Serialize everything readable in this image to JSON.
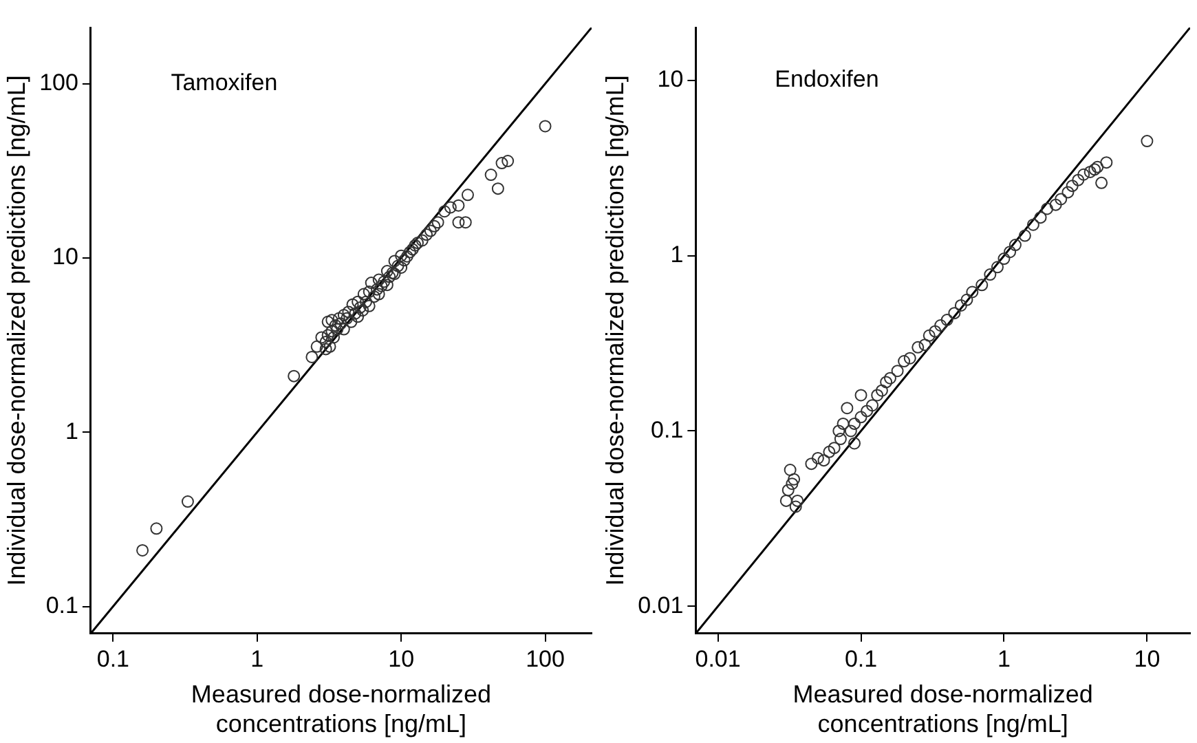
{
  "chart_data": [
    {
      "type": "scatter",
      "title": "Tamoxifen",
      "xlabel": "Measured dose-normalized concentrations [ng/mL]",
      "ylabel": "Individual dose-normalized predictions [ng/mL]",
      "log": "xy",
      "grid": false,
      "legend": false,
      "xlim": [
        0.07,
        210
      ],
      "ylim": [
        0.07,
        210
      ],
      "xticks": [
        0.1,
        1,
        10,
        100
      ],
      "yticks": [
        0.1,
        1,
        10,
        100
      ],
      "series": [
        {
          "marker": "circle",
          "color": "#333333",
          "x": [
            0.16,
            0.2,
            0.33,
            1.8,
            2.4,
            2.6,
            2.8,
            3.0,
            3.0,
            3.1,
            3.1,
            3.2,
            3.3,
            3.3,
            3.4,
            3.5,
            3.6,
            3.7,
            3.8,
            4.0,
            4.0,
            4.2,
            4.3,
            4.5,
            4.6,
            4.8,
            5.0,
            5.0,
            5.2,
            5.4,
            5.5,
            5.7,
            6.0,
            6.0,
            6.2,
            6.5,
            6.8,
            7.0,
            7.0,
            7.3,
            7.6,
            8.0,
            8.0,
            8.3,
            8.7,
            9.0,
            9.0,
            9.5,
            10,
            10,
            10.5,
            11,
            11.5,
            12,
            12.5,
            13,
            14,
            15,
            16,
            17,
            18,
            20,
            22,
            25,
            25,
            28,
            29,
            42,
            47,
            50,
            55,
            100
          ],
          "values": [
            0.21,
            0.28,
            0.4,
            2.1,
            2.7,
            3.1,
            3.5,
            3.0,
            3.3,
            3.6,
            4.3,
            3.1,
            3.8,
            4.4,
            3.5,
            4.1,
            3.9,
            4.5,
            4.2,
            3.9,
            4.7,
            4.5,
            4.9,
            4.3,
            5.4,
            4.8,
            4.6,
            5.6,
            5.2,
            5.0,
            6.2,
            5.6,
            5.3,
            6.4,
            7.2,
            6.0,
            6.6,
            6.2,
            7.5,
            6.9,
            7.3,
            7.0,
            8.4,
            7.8,
            8.2,
            8.1,
            9.6,
            9.0,
            8.8,
            10.3,
            9.7,
            10.2,
            10.8,
            11.2,
            11.8,
            12.2,
            12.6,
            13.6,
            14.3,
            15.2,
            16.0,
            18.5,
            19.5,
            20,
            16,
            16,
            23,
            30,
            25,
            35,
            36,
            57
          ]
        },
        {
          "type": "line",
          "marker": "none",
          "color": "#000000",
          "x": [
            0.07,
            210
          ],
          "values": [
            0.07,
            210
          ]
        }
      ]
    },
    {
      "type": "scatter",
      "title": "Endoxifen",
      "xlabel": "Measured dose-normalized concentrations [ng/mL]",
      "ylabel": "Individual dose-normalized predictions [ng/mL]",
      "log": "xy",
      "grid": false,
      "legend": false,
      "xlim": [
        0.007,
        20
      ],
      "ylim": [
        0.007,
        20
      ],
      "xticks": [
        0.01,
        0.1,
        1,
        10
      ],
      "yticks": [
        0.01,
        0.1,
        1,
        10
      ],
      "series": [
        {
          "marker": "circle",
          "color": "#333333",
          "x": [
            0.03,
            0.031,
            0.032,
            0.033,
            0.034,
            0.035,
            0.036,
            0.045,
            0.05,
            0.055,
            0.06,
            0.065,
            0.07,
            0.072,
            0.075,
            0.08,
            0.085,
            0.09,
            0.09,
            0.1,
            0.1,
            0.11,
            0.12,
            0.13,
            0.14,
            0.15,
            0.16,
            0.18,
            0.2,
            0.22,
            0.25,
            0.28,
            0.3,
            0.33,
            0.36,
            0.4,
            0.45,
            0.5,
            0.55,
            0.6,
            0.7,
            0.8,
            0.9,
            1.0,
            1.1,
            1.2,
            1.4,
            1.6,
            1.8,
            2.0,
            2.3,
            2.5,
            2.8,
            3.0,
            3.3,
            3.6,
            4.0,
            4.3,
            4.5,
            4.8,
            5.2,
            10
          ],
          "values": [
            0.04,
            0.046,
            0.06,
            0.05,
            0.053,
            0.037,
            0.04,
            0.065,
            0.07,
            0.068,
            0.076,
            0.08,
            0.1,
            0.09,
            0.11,
            0.135,
            0.1,
            0.085,
            0.11,
            0.12,
            0.16,
            0.13,
            0.14,
            0.16,
            0.17,
            0.19,
            0.2,
            0.22,
            0.25,
            0.26,
            0.3,
            0.31,
            0.35,
            0.37,
            0.4,
            0.43,
            0.47,
            0.52,
            0.56,
            0.62,
            0.68,
            0.78,
            0.86,
            0.96,
            1.05,
            1.15,
            1.3,
            1.5,
            1.65,
            1.85,
            1.95,
            2.1,
            2.3,
            2.5,
            2.7,
            2.9,
            3.0,
            3.1,
            3.2,
            2.6,
            3.4,
            4.5
          ]
        },
        {
          "type": "line",
          "marker": "none",
          "color": "#000000",
          "x": [
            0.007,
            20
          ],
          "values": [
            0.007,
            20
          ]
        }
      ]
    }
  ]
}
